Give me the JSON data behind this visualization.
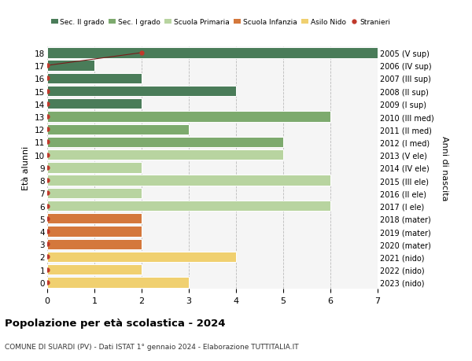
{
  "ages": [
    18,
    17,
    16,
    15,
    14,
    13,
    12,
    11,
    10,
    9,
    8,
    7,
    6,
    5,
    4,
    3,
    2,
    1,
    0
  ],
  "right_labels": [
    "2005 (V sup)",
    "2006 (IV sup)",
    "2007 (III sup)",
    "2008 (II sup)",
    "2009 (I sup)",
    "2010 (III med)",
    "2011 (II med)",
    "2012 (I med)",
    "2013 (V ele)",
    "2014 (IV ele)",
    "2015 (III ele)",
    "2016 (II ele)",
    "2017 (I ele)",
    "2018 (mater)",
    "2019 (mater)",
    "2020 (mater)",
    "2021 (nido)",
    "2022 (nido)",
    "2023 (nido)"
  ],
  "bar_values": [
    7,
    1,
    2,
    4,
    2,
    6,
    3,
    5,
    5,
    2,
    6,
    2,
    6,
    2,
    2,
    2,
    4,
    2,
    3
  ],
  "bar_colors": [
    "#4a7c59",
    "#4a7c59",
    "#4a7c59",
    "#4a7c59",
    "#4a7c59",
    "#7daa6e",
    "#7daa6e",
    "#7daa6e",
    "#b8d4a0",
    "#b8d4a0",
    "#b8d4a0",
    "#b8d4a0",
    "#b8d4a0",
    "#d4783c",
    "#d4783c",
    "#d4783c",
    "#f0d070",
    "#f0d070",
    "#f0d070"
  ],
  "stranieri_x_all": [
    2,
    0,
    0,
    0,
    0,
    0,
    0,
    0,
    0,
    0,
    0,
    0,
    0,
    0,
    0,
    0,
    0,
    0,
    0
  ],
  "stranieri_line_ages": [
    17,
    18
  ],
  "stranieri_line_x": [
    0,
    2
  ],
  "legend_labels": [
    "Sec. II grado",
    "Sec. I grado",
    "Scuola Primaria",
    "Scuola Infanzia",
    "Asilo Nido",
    "Stranieri"
  ],
  "legend_colors": [
    "#4a7c59",
    "#7daa6e",
    "#b8d4a0",
    "#d4783c",
    "#f0d070",
    "#c0392b"
  ],
  "title": "Popolazione per età scolastica - 2024",
  "subtitle": "COMUNE DI SUARDI (PV) - Dati ISTAT 1° gennaio 2024 - Elaborazione TUTTITALIA.IT",
  "ylabel_left": "Età alunni",
  "ylabel_right": "Anni di nascita",
  "xlim": [
    0,
    7
  ],
  "xticks": [
    0,
    1,
    2,
    3,
    4,
    5,
    6,
    7
  ],
  "background_color": "#ffffff",
  "plot_bg_color": "#f5f5f5"
}
